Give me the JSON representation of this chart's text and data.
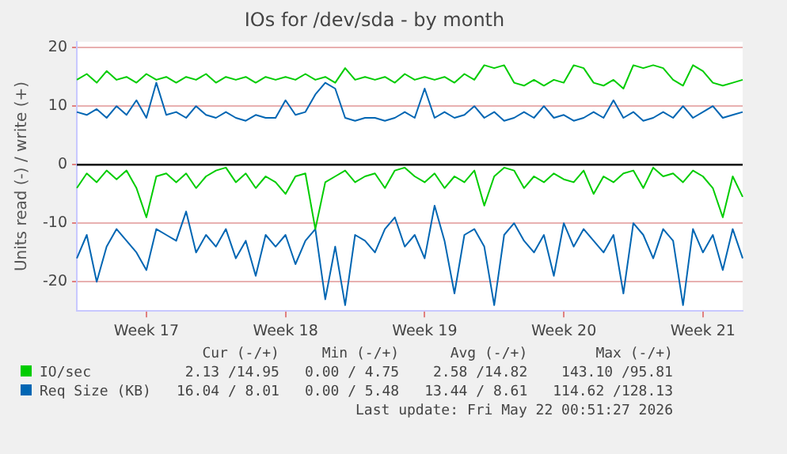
{
  "chart_data": {
    "type": "line",
    "title": "IOs for /dev/sda - by month",
    "ylabel": "Units read (-) / write (+)",
    "categories": [
      null,
      null,
      null,
      null,
      null,
      null,
      null,
      "Week 17",
      null,
      null,
      null,
      null,
      null,
      null,
      null,
      null,
      null,
      null,
      null,
      null,
      null,
      "Week 18",
      null,
      null,
      null,
      null,
      null,
      null,
      null,
      null,
      null,
      null,
      null,
      null,
      null,
      "Week 19",
      null,
      null,
      null,
      null,
      null,
      null,
      null,
      null,
      null,
      null,
      null,
      null,
      null,
      "Week 20",
      null,
      null,
      null,
      null,
      null,
      null,
      null,
      null,
      null,
      null,
      null,
      null,
      null,
      "Week 21",
      null,
      null,
      null,
      null
    ],
    "ylim": [
      -25,
      21
    ],
    "yticks": [
      -20,
      -10,
      0,
      10,
      20
    ],
    "grid": "y",
    "marker": "none",
    "line_style": "solid",
    "legend": "bottom",
    "series": [
      {
        "color": "#00cc00",
        "values": [
          -4,
          -1.5,
          -3,
          -1,
          -2.5,
          -1,
          -4,
          -9,
          -2,
          -1.5,
          -3,
          -1.5,
          -4,
          -2,
          -1,
          -0.5,
          -3,
          -1.5,
          -4,
          -2,
          -3,
          -5,
          -2,
          -1.5,
          -11,
          -3,
          -2,
          -1,
          -3,
          -2,
          -1.5,
          -4,
          -1,
          -0.5,
          -2,
          -3,
          -1.5,
          -4,
          -2,
          -3,
          -1,
          -7,
          -2,
          -0.5,
          -1,
          -4,
          -2,
          -3,
          -1.5,
          -2.5,
          -3,
          -1,
          -5,
          -2,
          -3,
          -1.5,
          -1,
          -4,
          -0.5,
          -2,
          -1.5,
          -3,
          -1,
          -2,
          -4,
          -9,
          -2,
          -5.5
        ]
      },
      {
        "name": "IO/sec",
        "color": "#00cc00",
        "values": [
          14.5,
          15.5,
          14,
          16,
          14.5,
          15,
          14,
          15.5,
          14.5,
          15,
          14,
          15,
          14.5,
          15.5,
          14,
          15,
          14.5,
          15,
          14,
          15,
          14.5,
          15,
          14.5,
          15.5,
          14.5,
          15,
          14,
          16.5,
          14.5,
          15,
          14.5,
          15,
          14,
          15.5,
          14.5,
          15,
          14.5,
          15,
          14,
          15.5,
          14.5,
          17,
          16.5,
          17,
          14,
          13.5,
          14.5,
          13.5,
          14.5,
          14,
          17,
          16.5,
          14,
          13.5,
          14.5,
          13,
          17,
          16.5,
          17,
          16.5,
          14.5,
          13.5,
          17,
          16,
          14,
          13.5,
          14,
          14.5
        ]
      },
      {
        "color": "#0066b3",
        "values": [
          -16,
          -12,
          -20,
          -14,
          -11,
          -13,
          -15,
          -18,
          -11,
          -12,
          -13,
          -8,
          -15,
          -12,
          -14,
          -11,
          -16,
          -13,
          -19,
          -12,
          -14,
          -12,
          -17,
          -13,
          -11,
          -23,
          -14,
          -24,
          -12,
          -13,
          -15,
          -11,
          -9,
          -14,
          -12,
          -16,
          -7,
          -13,
          -22,
          -12,
          -11,
          -14,
          -24,
          -12,
          -10,
          -13,
          -15,
          -12,
          -19,
          -10,
          -14,
          -11,
          -13,
          -15,
          -12,
          -22,
          -10,
          -12,
          -16,
          -11,
          -13,
          -24,
          -11,
          -15,
          -12,
          -18,
          -11,
          -16
        ]
      },
      {
        "name": "Req Size (KB)",
        "color": "#0066b3",
        "values": [
          9,
          8.5,
          9.5,
          8,
          10,
          8.5,
          11,
          8,
          14,
          8.5,
          9,
          8,
          10,
          8.5,
          8,
          9,
          8,
          7.5,
          8.5,
          8,
          8,
          11,
          8.5,
          9,
          12,
          14,
          13,
          8,
          7.5,
          8,
          8,
          7.5,
          8,
          9,
          8,
          13,
          8,
          9,
          8,
          8.5,
          10,
          8,
          9,
          7.5,
          8,
          9,
          8,
          10,
          8,
          8.5,
          7.5,
          8,
          9,
          8,
          11,
          8,
          9,
          7.5,
          8,
          9,
          8,
          10,
          8,
          9,
          10,
          8,
          8.5,
          9
        ]
      }
    ],
    "ref_lines": [
      {
        "axis": "y",
        "value": 0,
        "color": "#000000"
      }
    ],
    "annotations": [
      "Cur (-/+)",
      "Min (-/+)",
      "Avg (-/+)",
      "Max (-/+)",
      "2.13 /14.95",
      "0.00 / 4.75",
      "2.58 /14.82",
      "143.10 /95.81",
      "16.04 / 8.01",
      "0.00 / 5.48",
      "13.44 / 8.61",
      "114.62 /128.13",
      "Last update: Fri May 22 00:51:27 2026"
    ]
  }
}
